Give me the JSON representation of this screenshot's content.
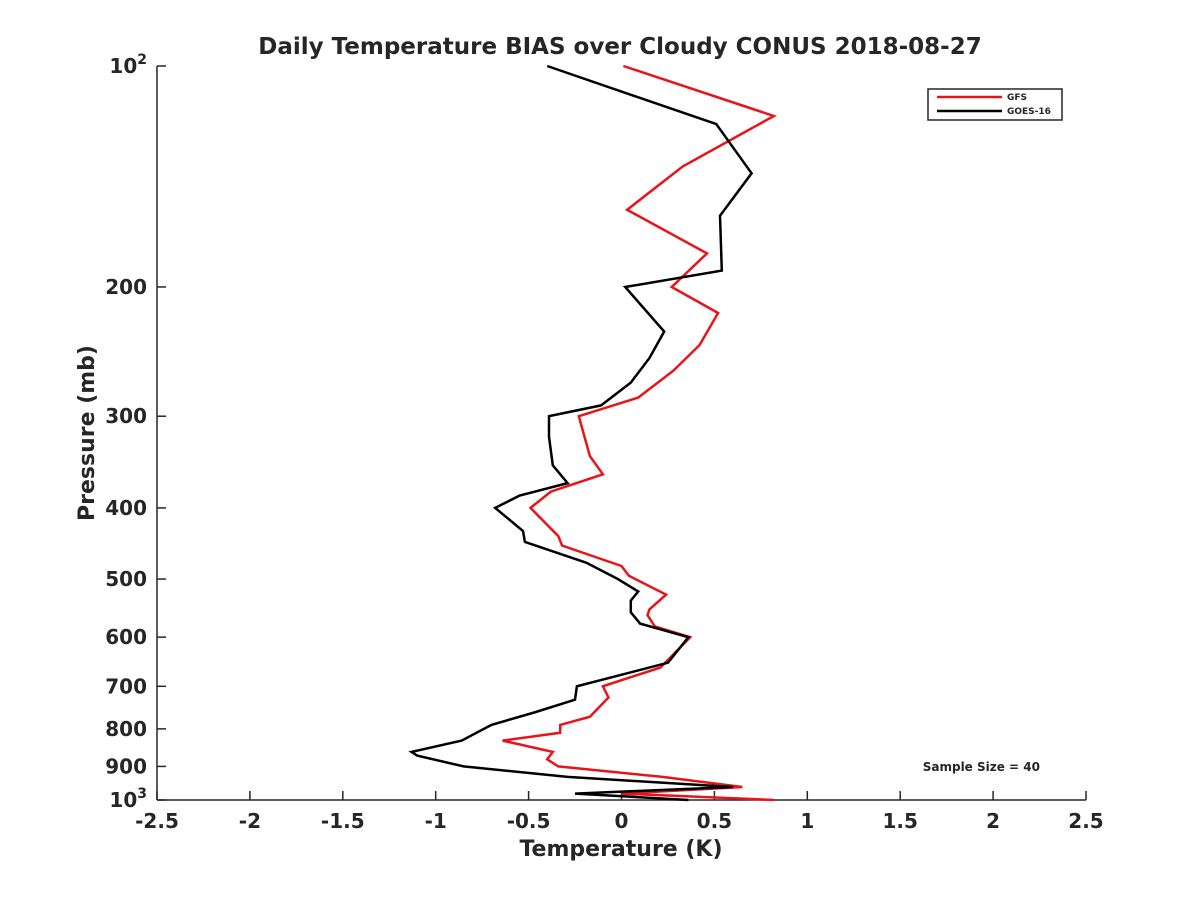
{
  "chart_data": {
    "type": "line",
    "title": "Daily Temperature BIAS over Cloudy CONUS 2018-08-27",
    "xlabel": "Temperature (K)",
    "ylabel": "Pressure (mb)",
    "xlim": [
      -2.5,
      2.5
    ],
    "ylim": [
      100,
      1000
    ],
    "yscale": "log",
    "yaxis_reversed": true,
    "grid": false,
    "legend_position": "top-right",
    "annotation": "Sample Size = 40",
    "x_ticks": [
      -2.5,
      -2,
      -1.5,
      -1,
      -0.5,
      0,
      0.5,
      1,
      1.5,
      2,
      2.5
    ],
    "x_tick_labels": [
      "-2.5",
      "-2",
      "-1.5",
      "-1",
      "-0.5",
      "0",
      "0.5",
      "1",
      "1.5",
      "2",
      "2.5"
    ],
    "y_ticks": [
      100,
      200,
      300,
      400,
      500,
      600,
      700,
      800,
      900,
      1000
    ],
    "y_tick_labels": [
      {
        "base": "10",
        "exp": "2"
      },
      {
        "base": "200",
        "exp": ""
      },
      {
        "base": "300",
        "exp": ""
      },
      {
        "base": "400",
        "exp": ""
      },
      {
        "base": "500",
        "exp": ""
      },
      {
        "base": "600",
        "exp": ""
      },
      {
        "base": "700",
        "exp": ""
      },
      {
        "base": "800",
        "exp": ""
      },
      {
        "base": "900",
        "exp": ""
      },
      {
        "base": "10",
        "exp": "3"
      }
    ],
    "series": [
      {
        "name": "GFS",
        "color": "#e8141a",
        "points": [
          [
            0.01,
            100
          ],
          [
            0.82,
            117
          ],
          [
            0.33,
            137
          ],
          [
            0.03,
            157
          ],
          [
            0.46,
            180
          ],
          [
            0.27,
            200
          ],
          [
            0.52,
            217
          ],
          [
            0.42,
            240
          ],
          [
            0.28,
            260
          ],
          [
            0.09,
            283
          ],
          [
            -0.23,
            300
          ],
          [
            -0.17,
            340
          ],
          [
            -0.1,
            360
          ],
          [
            -0.38,
            380
          ],
          [
            -0.49,
            400
          ],
          [
            -0.34,
            437
          ],
          [
            -0.32,
            450
          ],
          [
            0.0,
            480
          ],
          [
            0.04,
            495
          ],
          [
            0.24,
            525
          ],
          [
            0.15,
            550
          ],
          [
            0.14,
            560
          ],
          [
            0.18,
            580
          ],
          [
            0.37,
            600
          ],
          [
            0.21,
            660
          ],
          [
            -0.1,
            700
          ],
          [
            -0.07,
            725
          ],
          [
            -0.17,
            770
          ],
          [
            -0.33,
            790
          ],
          [
            -0.33,
            810
          ],
          [
            -0.64,
            830
          ],
          [
            -0.37,
            860
          ],
          [
            -0.4,
            880
          ],
          [
            -0.34,
            900
          ],
          [
            0.22,
            930
          ],
          [
            0.65,
            960
          ],
          [
            0.0,
            980
          ],
          [
            0.82,
            1000
          ]
        ]
      },
      {
        "name": "GOES-16",
        "color": "#000000",
        "points": [
          [
            -0.4,
            100
          ],
          [
            0.51,
            120
          ],
          [
            0.7,
            140
          ],
          [
            0.53,
            160
          ],
          [
            0.54,
            190
          ],
          [
            0.02,
            200
          ],
          [
            0.23,
            230
          ],
          [
            0.15,
            250
          ],
          [
            0.05,
            270
          ],
          [
            -0.11,
            290
          ],
          [
            -0.39,
            300
          ],
          [
            -0.39,
            320
          ],
          [
            -0.37,
            350
          ],
          [
            -0.29,
            370
          ],
          [
            -0.55,
            385
          ],
          [
            -0.68,
            400
          ],
          [
            -0.53,
            430
          ],
          [
            -0.52,
            445
          ],
          [
            -0.19,
            475
          ],
          [
            -0.02,
            500
          ],
          [
            0.09,
            520
          ],
          [
            0.05,
            535
          ],
          [
            0.05,
            555
          ],
          [
            0.1,
            575
          ],
          [
            0.36,
            600
          ],
          [
            0.25,
            650
          ],
          [
            -0.24,
            700
          ],
          [
            -0.25,
            730
          ],
          [
            -0.47,
            760
          ],
          [
            -0.7,
            790
          ],
          [
            -0.86,
            830
          ],
          [
            -1.13,
            860
          ],
          [
            -1.1,
            870
          ],
          [
            -0.85,
            900
          ],
          [
            -0.29,
            930
          ],
          [
            0.6,
            960
          ],
          [
            -0.25,
            980
          ],
          [
            0.36,
            1000
          ]
        ]
      }
    ]
  }
}
